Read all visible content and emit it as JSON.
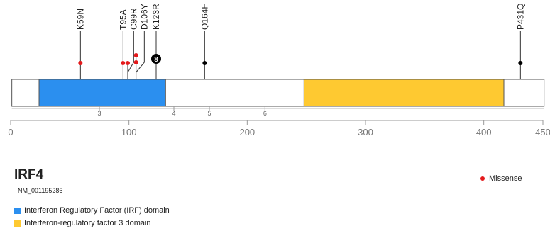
{
  "gene": {
    "symbol": "IRF4",
    "transcript": "NM_001195286"
  },
  "protein": {
    "length": 451
  },
  "axis": {
    "min": 0,
    "max": 450,
    "ticks": [
      0,
      100,
      200,
      300,
      400,
      450
    ]
  },
  "domains": [
    {
      "name": "Interferon Regulatory Factor (IRF) domain",
      "start": 24,
      "end": 131,
      "color": "#2b8fef"
    },
    {
      "name": "Interferon-regulatory factor 3 domain",
      "start": 248,
      "end": 417,
      "color": "#fec931"
    }
  ],
  "exons": [
    {
      "label": "3",
      "pos": 75
    },
    {
      "label": "4",
      "pos": 138
    },
    {
      "label": "5",
      "pos": 168
    },
    {
      "label": "6",
      "pos": 215
    }
  ],
  "mutations": [
    {
      "label": "K59N",
      "pos": 59,
      "count": 1,
      "type": "Missense"
    },
    {
      "label": "T95A",
      "pos": 95,
      "count": 1,
      "type": "Missense"
    },
    {
      "label": "C99R",
      "pos": 99,
      "count": 1,
      "type": "Missense"
    },
    {
      "label": "D106Y",
      "pos": 106,
      "count": 2,
      "type": "Missense"
    },
    {
      "label": "K123R",
      "pos": 123,
      "count": 8,
      "type": "Other"
    },
    {
      "label": "Q164H",
      "pos": 164,
      "count": 1,
      "type": "Other"
    },
    {
      "label": "P431Q",
      "pos": 431,
      "count": 1,
      "type": "Other"
    }
  ],
  "legend": {
    "missense_label": "Missense",
    "missense_color": "#e41a1c",
    "other_color": "#000000"
  }
}
